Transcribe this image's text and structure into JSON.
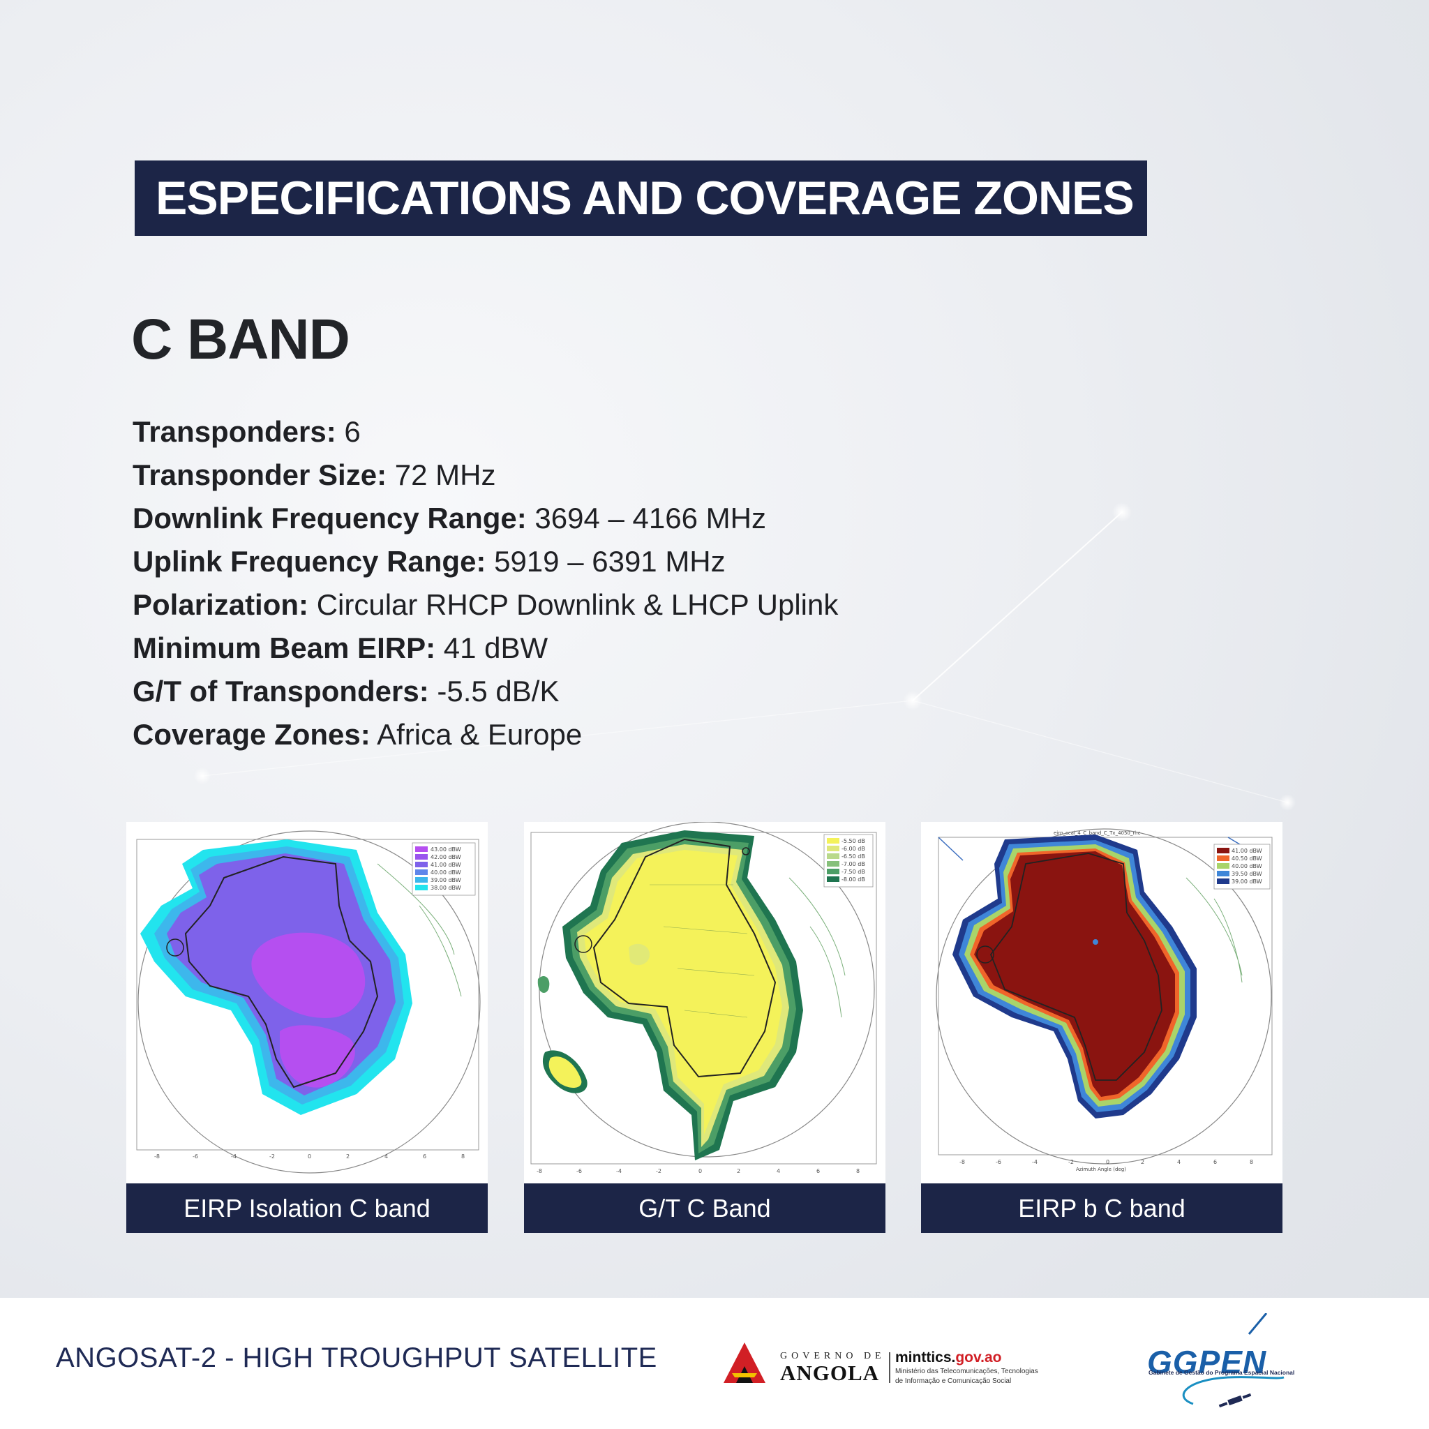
{
  "header": {
    "title": "ESPECIFICATIONS AND COVERAGE ZONES"
  },
  "band": {
    "heading": "C BAND"
  },
  "specs": [
    {
      "label": "Transponders:",
      "value": " 6"
    },
    {
      "label": "Transponder Size:",
      "value": " 72 MHz"
    },
    {
      "label": "Downlink Frequency Range:",
      "value": " 3694 – 4166 MHz"
    },
    {
      "label": "Uplink Frequency Range:",
      "value": " 5919 – 6391 MHz"
    },
    {
      "label": "Polarization:",
      "value": " Circular RHCP Downlink & LHCP Uplink"
    },
    {
      "label": "Minimum Beam EIRP:",
      "value": " 41 dBW"
    },
    {
      "label": "G/T of Transponders:",
      "value": " -5.5 dB/K"
    },
    {
      "label": "Coverage Zones:",
      "value": " Africa & Europe"
    }
  ],
  "maps": [
    {
      "caption": "EIRP Isolation C band",
      "legend": [
        "43.00 dBW",
        "42.00 dBW",
        "41.00 dBW",
        "40.00 dBW",
        "39.00 dBW",
        "38.00 dBW"
      ],
      "legend_colors": [
        "#b54ff0",
        "#9a55ee",
        "#7e62ea",
        "#5f86ea",
        "#3db7ec",
        "#22e4ee"
      ],
      "x_ticks": [
        "-8",
        "-6",
        "-4",
        "-2",
        "0",
        "2",
        "4",
        "6",
        "8"
      ]
    },
    {
      "caption": "G/T C Band",
      "legend": [
        "-5.50 dB",
        "-6.00 dB",
        "-6.50 dB",
        "-7.00 dB",
        "-7.50 dB",
        "-8.00 dB"
      ],
      "legend_colors": [
        "#f4f25a",
        "#dfe87a",
        "#b9d98a",
        "#86c07a",
        "#4c9e66",
        "#1f7550"
      ],
      "x_ticks": [
        "-8",
        "-6",
        "-4",
        "-2",
        "0",
        "2",
        "4",
        "6",
        "8"
      ]
    },
    {
      "caption": "EIRP b C band",
      "plot_title": "eirp_scal_4_C_band_C_Tx_4050_rhc",
      "xlabel": "Azimuth Angle (deg)",
      "legend": [
        "41.00 dBW",
        "40.50 dBW",
        "40.00 dBW",
        "39.50 dBW",
        "39.00 dBW"
      ],
      "legend_colors": [
        "#8a1410",
        "#f0652a",
        "#a9d46a",
        "#3f86d8",
        "#1f3a8c"
      ],
      "x_ticks": [
        "-8",
        "-6",
        "-4",
        "-2",
        "0",
        "2",
        "4",
        "6",
        "8"
      ]
    }
  ],
  "footer": {
    "title": "ANGOSAT-2 - HIGH TROUGHPUT SATELLITE",
    "gov_small": "GOVERNO DE",
    "gov_big": "ANGOLA",
    "ministry_site_main": "minttics.",
    "ministry_site_gov": "gov.ao",
    "ministry_desc_1": "Ministério das Telecomunicações, Tecnologias",
    "ministry_desc_2": "de Informação e Comunicação Social",
    "ggpen_word": "GGPEN",
    "ggpen_tag": "Gabinete de Gestão do Programa Espacial Nacional"
  }
}
